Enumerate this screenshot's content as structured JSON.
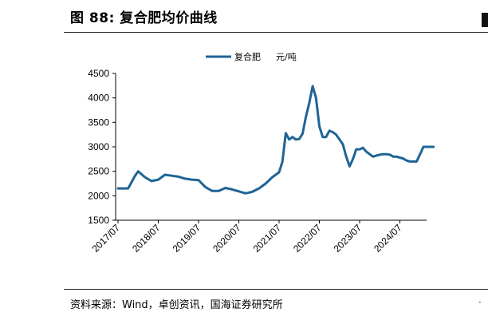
{
  "header": {
    "title": "图 88:  复合肥均价曲线"
  },
  "footer": {
    "source": "资料来源：Wind，卓创资讯，国海证券研究所"
  },
  "colors": {
    "series": "#1f6496",
    "axis": "#000000"
  },
  "chart_data": {
    "type": "line",
    "title": "",
    "xlabel": "",
    "ylabel": "",
    "ylim": [
      1500,
      4500
    ],
    "yticks": [
      "1500",
      "2000",
      "2500",
      "3000",
      "3500",
      "4000",
      "4500"
    ],
    "xticks": [
      "2017/07",
      "2018/07",
      "2019/07",
      "2020/07",
      "2021/07",
      "2022/07",
      "2023/07",
      "2024/07"
    ],
    "grid": false,
    "legend": "top-center",
    "series": [
      {
        "name": "复合肥",
        "unit": "元/吨",
        "x": [
          "2017/07",
          "2017/09",
          "2017/10",
          "2017/11",
          "2017/12",
          "2018/01",
          "2018/03",
          "2018/05",
          "2018/07",
          "2018/09",
          "2018/11",
          "2019/01",
          "2019/03",
          "2019/05",
          "2019/07",
          "2019/09",
          "2019/11",
          "2020/01",
          "2020/03",
          "2020/05",
          "2020/07",
          "2020/09",
          "2020/11",
          "2021/01",
          "2021/03",
          "2021/05",
          "2021/07",
          "2021/08",
          "2021/09",
          "2021/10",
          "2021/11",
          "2021/12",
          "2022/01",
          "2022/02",
          "2022/03",
          "2022/04",
          "2022/05",
          "2022/06",
          "2022/07",
          "2022/08",
          "2022/09",
          "2022/10",
          "2022/11",
          "2022/12",
          "2023/01",
          "2023/02",
          "2023/03",
          "2023/04",
          "2023/05",
          "2023/06",
          "2023/07",
          "2023/08",
          "2023/09",
          "2023/10",
          "2023/11",
          "2023/12",
          "2024/01",
          "2024/02",
          "2024/03",
          "2024/04",
          "2024/05",
          "2024/06",
          "2024/07",
          "2024/08",
          "2024/09",
          "2024/10",
          "2024/11",
          "2024/12",
          "2025/01",
          "2025/02",
          "2025/03",
          "2025/04",
          "2025/05"
        ],
        "values": [
          2150,
          2150,
          2150,
          2270,
          2400,
          2500,
          2380,
          2300,
          2330,
          2430,
          2410,
          2390,
          2350,
          2330,
          2320,
          2180,
          2100,
          2100,
          2160,
          2130,
          2090,
          2050,
          2080,
          2150,
          2250,
          2380,
          2480,
          2700,
          3280,
          3150,
          3200,
          3150,
          3160,
          3270,
          3620,
          3900,
          4240,
          4000,
          3420,
          3200,
          3200,
          3330,
          3300,
          3250,
          3150,
          3050,
          2800,
          2600,
          2750,
          2950,
          2950,
          2980,
          2900,
          2850,
          2800,
          2820,
          2840,
          2850,
          2850,
          2840,
          2800,
          2800,
          2780,
          2760,
          2720,
          2700,
          2700,
          2700,
          2850,
          3000,
          3000,
          3000,
          3000
        ]
      }
    ]
  }
}
